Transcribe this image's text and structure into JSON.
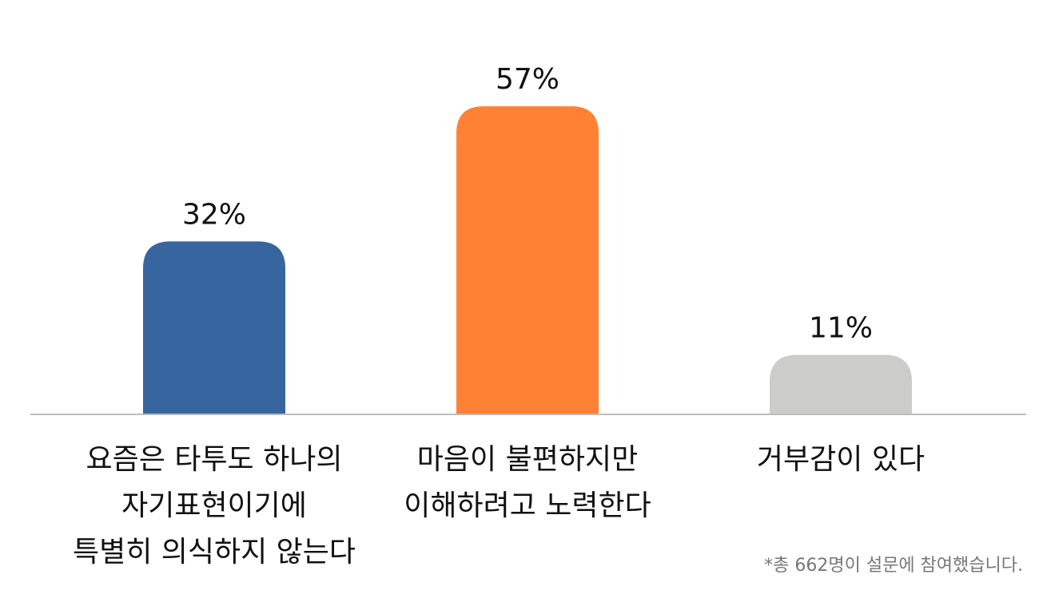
{
  "chart_data": {
    "type": "bar",
    "categories": [
      [
        "요즘은 타투도 하나의",
        "자기표현이기에",
        "특별히 의식하지 않는다"
      ],
      [
        "마음이 불편하지만",
        "이해하려고 노력한다"
      ],
      [
        "거부감이 있다"
      ]
    ],
    "values": [
      32,
      57,
      11
    ],
    "data_labels": [
      "32%",
      "57%",
      "11%"
    ],
    "colors": [
      "#3765a0",
      "#ff8234",
      "#cccccb"
    ],
    "ylim": [
      0,
      65
    ],
    "grid": false,
    "legend": "none",
    "title": "",
    "xlabel": "",
    "ylabel": ""
  },
  "footnote": "*총 662명이 설문에 참여했습니다."
}
